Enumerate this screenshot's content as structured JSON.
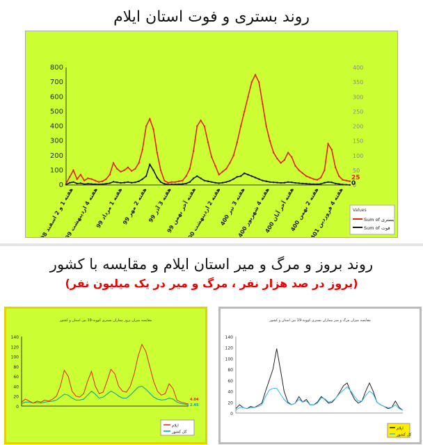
{
  "titles": {
    "main": "روند بستری و فوت استان ایلام",
    "section2": "روند بروز و مرگ و میر استان ایلام و مقایسه با کشور",
    "section2_sub": "(بروز در صد هزار نفر ، مرگ و میر در یک میلیون نفر)"
  },
  "chart_data": [
    {
      "type": "line",
      "title": "روند بستری و فوت استان ایلام",
      "x_tick_labels": [
        "هفته 1 و 2 اسفند 98",
        "هفته 4 اردیبهشت 99",
        "هفته 1 مرداد 99",
        "هفته 2 مهر 99",
        "هفته 3 آذر 99",
        "هفته آخر بهمن 99",
        "هفته 2 اردیبهشت 400",
        "هفته 3 تیر 400",
        "هفته 4 شهریور 400",
        "هفته آخر آبان 400",
        "هفته 2 بهمن 400",
        "هفته 4 فروردین 401"
      ],
      "y_ticks_left": [
        0,
        100,
        200,
        300,
        400,
        500,
        600,
        700,
        800
      ],
      "y_ticks_right": [
        0,
        50,
        100,
        150,
        200,
        250,
        300,
        350,
        400
      ],
      "ylim": [
        0,
        800
      ],
      "legend_title": "Values",
      "end_labels": [
        "25",
        "0"
      ],
      "series": [
        {
          "name": "Sum of بستری",
          "color": "#e02010",
          "values": [
            10,
            55,
            100,
            40,
            70,
            30,
            45,
            40,
            30,
            20,
            25,
            40,
            70,
            150,
            110,
            90,
            100,
            120,
            95,
            110,
            150,
            240,
            400,
            450,
            380,
            220,
            100,
            30,
            15,
            20,
            20,
            25,
            30,
            60,
            110,
            230,
            400,
            440,
            400,
            290,
            190,
            130,
            70,
            90,
            110,
            150,
            200,
            290,
            400,
            500,
            600,
            700,
            750,
            700,
            550,
            400,
            300,
            220,
            180,
            150,
            170,
            220,
            190,
            130,
            100,
            80,
            60,
            50,
            40,
            35,
            50,
            100,
            280,
            240,
            120,
            60,
            35,
            30,
            25
          ]
        },
        {
          "name": "Sum of فوت",
          "color": "#111111",
          "values": [
            2,
            15,
            20,
            10,
            12,
            5,
            8,
            6,
            5,
            4,
            5,
            8,
            12,
            22,
            18,
            14,
            16,
            20,
            15,
            18,
            25,
            40,
            60,
            140,
            100,
            50,
            20,
            8,
            3,
            4,
            4,
            5,
            6,
            10,
            20,
            45,
            60,
            45,
            30,
            25,
            20,
            15,
            12,
            15,
            20,
            28,
            40,
            55,
            60,
            80,
            70,
            60,
            50,
            40,
            30,
            25,
            20,
            18,
            16,
            14,
            15,
            20,
            18,
            14,
            12,
            10,
            8,
            6,
            5,
            5,
            7,
            15,
            20,
            18,
            10,
            6,
            3,
            2,
            0
          ]
        }
      ]
    },
    {
      "type": "line",
      "title": "مقایسه میزان بروز بیماران بستری کووید-19 بین استان و کشور",
      "y_ticks": [
        0,
        20,
        40,
        60,
        80,
        100,
        120,
        140
      ],
      "ylim": [
        0,
        140
      ],
      "end_labels": [
        "4.04",
        "2.45"
      ],
      "series": [
        {
          "name": "ایلام",
          "color": "#e02010",
          "values": [
            8,
            14,
            10,
            6,
            10,
            8,
            12,
            10,
            14,
            20,
            40,
            72,
            60,
            30,
            20,
            18,
            25,
            50,
            70,
            40,
            25,
            28,
            50,
            74,
            65,
            40,
            30,
            28,
            40,
            65,
            100,
            124,
            110,
            80,
            50,
            30,
            22,
            25,
            45,
            35,
            12,
            8,
            6,
            4
          ]
        },
        {
          "name": "کل کشور",
          "color": "#00a090",
          "values": [
            5,
            8,
            8,
            6,
            7,
            6,
            8,
            9,
            10,
            12,
            18,
            24,
            22,
            16,
            12,
            12,
            14,
            22,
            30,
            24,
            16,
            18,
            24,
            30,
            26,
            20,
            16,
            16,
            22,
            30,
            38,
            40,
            34,
            26,
            18,
            14,
            12,
            13,
            16,
            14,
            8,
            5,
            4,
            2
          ]
        }
      ]
    },
    {
      "type": "line",
      "title": "مقایسه میزان مرگ و میر بیماران بستری کووید-19 بین استان و کشور",
      "y_ticks": [
        0,
        20,
        40,
        60,
        80,
        100,
        120,
        140
      ],
      "ylim": [
        0,
        140
      ],
      "series": [
        {
          "name": "ایلام",
          "color": "#222222",
          "values": [
            8,
            15,
            10,
            8,
            12,
            10,
            14,
            18,
            40,
            60,
            80,
            118,
            80,
            40,
            20,
            15,
            18,
            30,
            20,
            25,
            15,
            15,
            20,
            30,
            25,
            18,
            20,
            28,
            38,
            50,
            55,
            38,
            25,
            18,
            22,
            40,
            55,
            40,
            20,
            15,
            12,
            8,
            10,
            22,
            10,
            5
          ]
        },
        {
          "name": "کل کشور",
          "color": "#33b8e8",
          "values": [
            5,
            10,
            10,
            8,
            10,
            10,
            12,
            15,
            30,
            42,
            45,
            45,
            35,
            25,
            18,
            15,
            18,
            25,
            20,
            22,
            15,
            15,
            18,
            28,
            26,
            20,
            22,
            28,
            36,
            42,
            48,
            40,
            30,
            22,
            22,
            32,
            40,
            35,
            20,
            15,
            12,
            10,
            10,
            15,
            8,
            5
          ]
        }
      ]
    }
  ]
}
